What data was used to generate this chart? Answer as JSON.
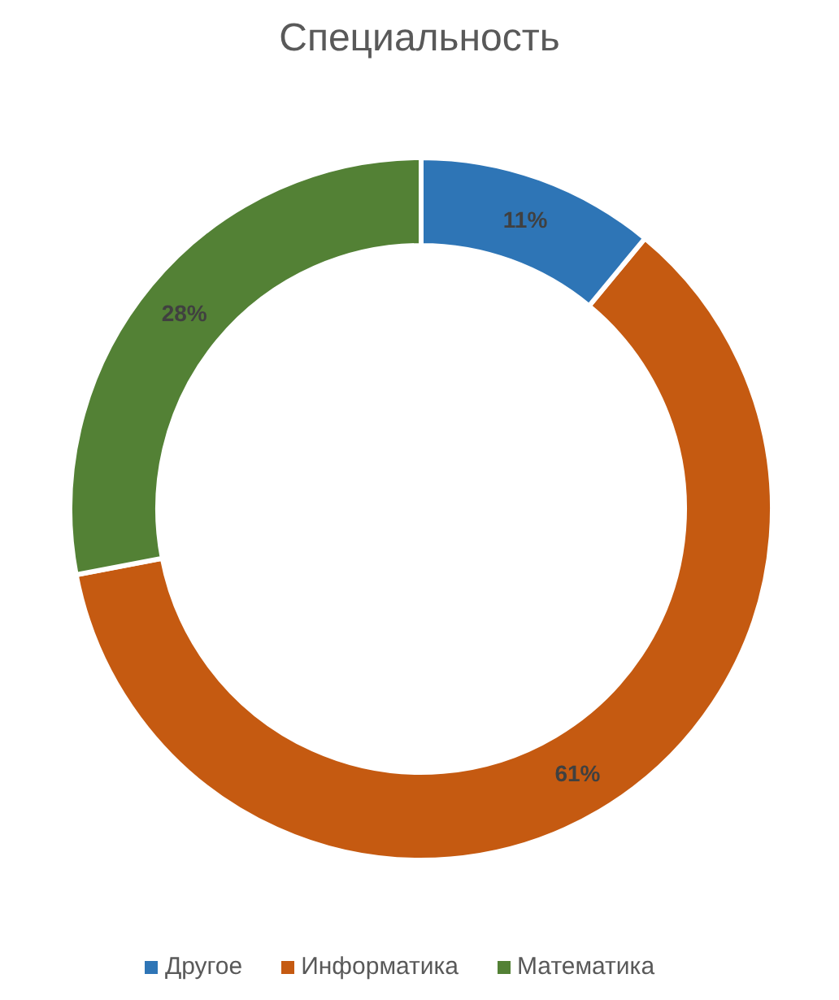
{
  "chart_data": {
    "type": "donut",
    "title": "Специальность",
    "categories": [
      "Информатика",
      "Математика",
      "Другое"
    ],
    "values": [
      61,
      28,
      11
    ],
    "value_labels": [
      "61%",
      "28%",
      "11%"
    ],
    "colors": [
      "#c55a11",
      "#538135",
      "#2e75b6"
    ],
    "legend": "bottom"
  }
}
